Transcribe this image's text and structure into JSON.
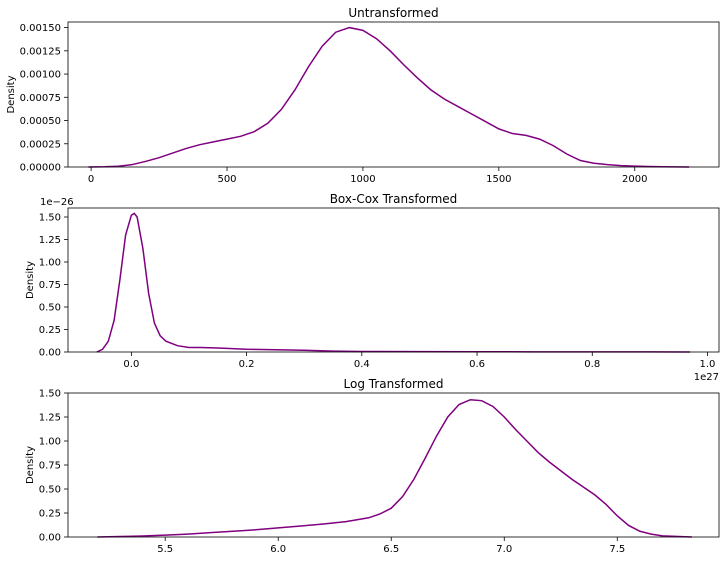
{
  "chart_data": [
    {
      "type": "line",
      "title": "Untransformed",
      "ylabel": "Density",
      "xlabel": "",
      "xlim": [
        -85,
        2310
      ],
      "ylim": [
        0,
        0.00156
      ],
      "xticks": [
        0,
        500,
        1000,
        1500,
        2000
      ],
      "xtick_labels": [
        "0",
        "500",
        "1000",
        "1500",
        "2000"
      ],
      "yticks": [
        0,
        0.00025,
        0.0005,
        0.00075,
        0.001,
        0.00125,
        0.0015
      ],
      "ytick_labels": [
        "0.00000",
        "0.00025",
        "0.00050",
        "0.00075",
        "0.00100",
        "0.00125",
        "0.00150"
      ],
      "x_offset_label": "",
      "y_offset_label": "",
      "color": "#800080",
      "grid": false,
      "series": [
        {
          "x": [
            -10,
            50,
            100,
            150,
            200,
            250,
            300,
            350,
            400,
            450,
            500,
            550,
            600,
            650,
            700,
            750,
            800,
            850,
            900,
            950,
            1000,
            1050,
            1100,
            1150,
            1200,
            1250,
            1300,
            1350,
            1400,
            1450,
            1500,
            1550,
            1600,
            1650,
            1700,
            1750,
            1800,
            1850,
            1900,
            1950,
            2000,
            2050,
            2100,
            2150,
            2200
          ],
          "y": [
            0,
            2e-06,
            8e-06,
            2.5e-05,
            6e-05,
            0.0001,
            0.00015,
            0.0002,
            0.00024,
            0.00027,
            0.0003,
            0.00033,
            0.00038,
            0.00047,
            0.00062,
            0.00083,
            0.00108,
            0.0013,
            0.00145,
            0.0015,
            0.00147,
            0.00138,
            0.00125,
            0.0011,
            0.00096,
            0.00083,
            0.00073,
            0.00065,
            0.00057,
            0.00049,
            0.00041,
            0.00036,
            0.00034,
            0.0003,
            0.00023,
            0.00014,
            7e-05,
            4e-05,
            2.5e-05,
            1.5e-05,
            1e-05,
            6e-06,
            3e-06,
            1e-06,
            0
          ]
        }
      ]
    },
    {
      "type": "line",
      "title": "Box-Cox Transformed",
      "ylabel": "Density",
      "xlabel": "",
      "xlim": [
        -0.11,
        1.02
      ],
      "ylim": [
        0,
        1.6
      ],
      "xticks": [
        0,
        0.2,
        0.4,
        0.6,
        0.8,
        1.0
      ],
      "xtick_labels": [
        "0.0",
        "0.2",
        "0.4",
        "0.6",
        "0.8",
        "1.0"
      ],
      "yticks": [
        0,
        0.25,
        0.5,
        0.75,
        1.0,
        1.25,
        1.5
      ],
      "ytick_labels": [
        "0.00",
        "0.25",
        "0.50",
        "0.75",
        "1.00",
        "1.25",
        "1.50"
      ],
      "x_offset_label": "1e27",
      "y_offset_label": "1e−26",
      "color": "#800080",
      "grid": false,
      "series": [
        {
          "x": [
            -0.06,
            -0.05,
            -0.04,
            -0.03,
            -0.02,
            -0.01,
            0,
            0.005,
            0.01,
            0.02,
            0.03,
            0.04,
            0.05,
            0.06,
            0.08,
            0.1,
            0.12,
            0.15,
            0.2,
            0.25,
            0.3,
            0.35,
            0.4,
            0.5,
            0.6,
            0.7,
            0.8,
            0.9,
            0.97
          ],
          "y": [
            0,
            0.03,
            0.12,
            0.35,
            0.8,
            1.3,
            1.52,
            1.54,
            1.5,
            1.15,
            0.65,
            0.32,
            0.18,
            0.12,
            0.07,
            0.05,
            0.05,
            0.045,
            0.03,
            0.025,
            0.02,
            0.01,
            0.006,
            0.004,
            0.003,
            0.002,
            0.001,
            0.001,
            0
          ]
        }
      ]
    },
    {
      "type": "line",
      "title": "Log Transformed",
      "ylabel": "Density",
      "xlabel": "",
      "xlim": [
        5.07,
        7.95
      ],
      "ylim": [
        0,
        1.5
      ],
      "xticks": [
        5.5,
        6.0,
        6.5,
        7.0,
        7.5
      ],
      "xtick_labels": [
        "5.5",
        "6.0",
        "6.5",
        "7.0",
        "7.5"
      ],
      "yticks": [
        0,
        0.25,
        0.5,
        0.75,
        1.0,
        1.25,
        1.5
      ],
      "ytick_labels": [
        "0.00",
        "0.25",
        "0.50",
        "0.75",
        "1.00",
        "1.25",
        "1.50"
      ],
      "x_offset_label": "",
      "y_offset_label": "",
      "color": "#800080",
      "grid": false,
      "series": [
        {
          "x": [
            5.2,
            5.3,
            5.4,
            5.5,
            5.6,
            5.7,
            5.8,
            5.9,
            6.0,
            6.1,
            6.2,
            6.3,
            6.4,
            6.45,
            6.5,
            6.55,
            6.6,
            6.65,
            6.7,
            6.75,
            6.8,
            6.85,
            6.9,
            6.95,
            7.0,
            7.05,
            7.1,
            7.15,
            7.2,
            7.3,
            7.4,
            7.45,
            7.5,
            7.55,
            7.6,
            7.65,
            7.7,
            7.8,
            7.83
          ],
          "y": [
            0,
            0.005,
            0.01,
            0.02,
            0.03,
            0.045,
            0.06,
            0.075,
            0.095,
            0.115,
            0.135,
            0.16,
            0.2,
            0.24,
            0.3,
            0.42,
            0.6,
            0.82,
            1.05,
            1.25,
            1.38,
            1.43,
            1.42,
            1.36,
            1.25,
            1.12,
            1.0,
            0.88,
            0.78,
            0.6,
            0.44,
            0.34,
            0.22,
            0.12,
            0.06,
            0.03,
            0.012,
            0.003,
            0
          ]
        }
      ]
    }
  ]
}
